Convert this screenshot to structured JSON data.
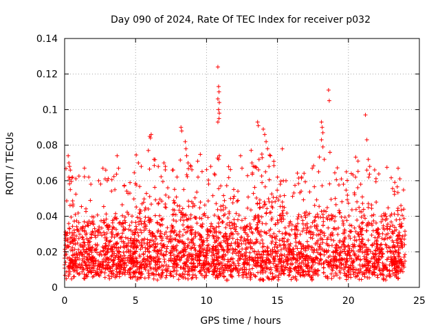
{
  "chart_data": {
    "type": "scatter",
    "title": "Day 090 of 2024, Rate Of TEC Index for receiver p032",
    "xlabel": "GPS time / hours",
    "ylabel": "ROTI / TECUs",
    "xlim": [
      0,
      25
    ],
    "ylim": [
      0,
      0.14
    ],
    "xticks": [
      "0",
      "5",
      "10",
      "15",
      "20",
      "25"
    ],
    "yticks": [
      "0",
      "0.02",
      "0.04",
      "0.06",
      "0.08",
      "0.1",
      "0.12",
      "0.14"
    ],
    "grid": true,
    "marker": "plus",
    "color": "#ff0000",
    "series": [
      {
        "points": [
          [
            0.25,
            0.074
          ],
          [
            0.3,
            0.07
          ],
          [
            0.35,
            0.068
          ],
          [
            0.4,
            0.066
          ],
          [
            0.3,
            0.062
          ],
          [
            0.4,
            0.055
          ],
          [
            1.7,
            0.062
          ],
          [
            1.85,
            0.058
          ],
          [
            2.4,
            0.06
          ],
          [
            2.7,
            0.067
          ],
          [
            2.9,
            0.066
          ],
          [
            3.0,
            0.06
          ],
          [
            3.7,
            0.074
          ],
          [
            3.8,
            0.067
          ],
          [
            4.2,
            0.057
          ],
          [
            4.6,
            0.053
          ],
          [
            5.2,
            0.07
          ],
          [
            5.4,
            0.068
          ],
          [
            5.9,
            0.077
          ],
          [
            6.0,
            0.085
          ],
          [
            6.1,
            0.086
          ],
          [
            6.05,
            0.084
          ],
          [
            6.3,
            0.072
          ],
          [
            6.6,
            0.068
          ],
          [
            7.0,
            0.07
          ],
          [
            7.1,
            0.068
          ],
          [
            7.6,
            0.066
          ],
          [
            8.2,
            0.09
          ],
          [
            8.25,
            0.088
          ],
          [
            8.5,
            0.082
          ],
          [
            8.55,
            0.078
          ],
          [
            8.6,
            0.074
          ],
          [
            8.7,
            0.07
          ],
          [
            8.9,
            0.068
          ],
          [
            9.4,
            0.062
          ],
          [
            10.3,
            0.068
          ],
          [
            10.8,
            0.124
          ],
          [
            10.85,
            0.113
          ],
          [
            10.88,
            0.11
          ],
          [
            10.8,
            0.106
          ],
          [
            10.9,
            0.104
          ],
          [
            10.85,
            0.1
          ],
          [
            10.9,
            0.098
          ],
          [
            10.88,
            0.095
          ],
          [
            10.8,
            0.093
          ],
          [
            10.9,
            0.074
          ],
          [
            10.85,
            0.072
          ],
          [
            12.4,
            0.074
          ],
          [
            12.5,
            0.067
          ],
          [
            13.2,
            0.07
          ],
          [
            13.6,
            0.093
          ],
          [
            13.65,
            0.091
          ],
          [
            14.0,
            0.089
          ],
          [
            14.1,
            0.086
          ],
          [
            14.2,
            0.082
          ],
          [
            14.3,
            0.078
          ],
          [
            13.9,
            0.075
          ],
          [
            13.7,
            0.072
          ],
          [
            14.5,
            0.074
          ],
          [
            14.4,
            0.068
          ],
          [
            15.0,
            0.062
          ],
          [
            15.2,
            0.058
          ],
          [
            15.6,
            0.06
          ],
          [
            17.9,
            0.065
          ],
          [
            18.1,
            0.093
          ],
          [
            18.15,
            0.09
          ],
          [
            18.2,
            0.087
          ],
          [
            18.1,
            0.083
          ],
          [
            18.2,
            0.079
          ],
          [
            18.3,
            0.072
          ],
          [
            18.6,
            0.111
          ],
          [
            18.65,
            0.105
          ],
          [
            18.7,
            0.076
          ],
          [
            19.5,
            0.061
          ],
          [
            20.2,
            0.064
          ],
          [
            20.5,
            0.062
          ],
          [
            21.2,
            0.097
          ],
          [
            21.3,
            0.083
          ],
          [
            21.4,
            0.072
          ],
          [
            21.5,
            0.068
          ],
          [
            21.3,
            0.066
          ],
          [
            23.5,
            0.067
          ],
          [
            23.7,
            0.046
          ],
          [
            23.9,
            0.044
          ]
        ]
      }
    ]
  }
}
